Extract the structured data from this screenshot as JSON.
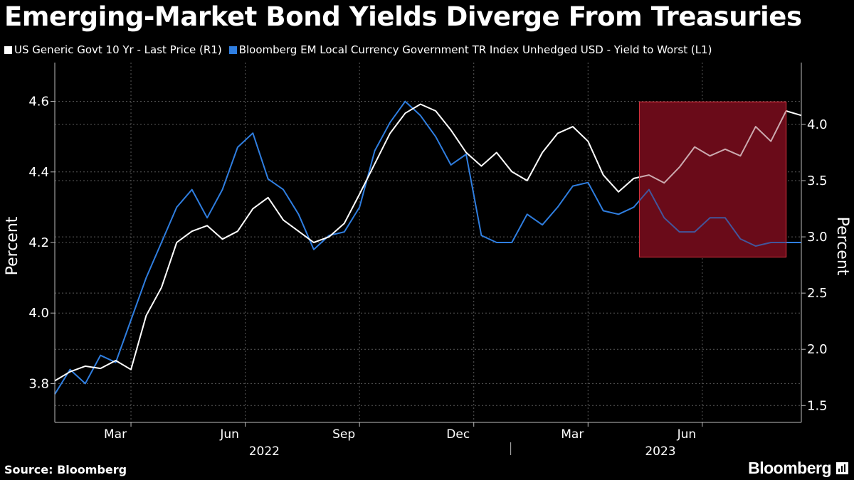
{
  "title": "Emerging-Market Bond Yields Diverge From Treasuries",
  "source": "Source: Bloomberg",
  "brand": "Bloomberg",
  "colors": {
    "background": "#000000",
    "us10y": "#ffffff",
    "em_index": "#2f7ee0",
    "highlight_fill": "#6b0b1a",
    "highlight_border": "#d0303c",
    "grid": "#5a5a5a"
  },
  "chart_data": {
    "type": "line",
    "title": "Emerging-Market Bond Yields Diverge From Treasuries",
    "legend": [
      {
        "name": "US Generic Govt 10 Yr - Last Price (R1)",
        "color": "#ffffff",
        "axis": "right"
      },
      {
        "name": "Bloomberg EM Local Currency Government TR Index Unhedged USD - Yield to Worst (L1)",
        "color": "#2f7ee0",
        "axis": "left"
      }
    ],
    "left_axis": {
      "label": "Percent",
      "range": [
        3.69,
        4.71
      ],
      "ticks": [
        "3.8",
        "4.0",
        "4.2",
        "4.4",
        "4.6"
      ]
    },
    "right_axis": {
      "label": "Percent",
      "range": [
        1.35,
        4.55
      ],
      "ticks": [
        "1.5",
        "2.0",
        "2.5",
        "3.0",
        "3.5",
        "4.0"
      ]
    },
    "x_range": [
      0,
      19.6
    ],
    "x_ticks": [
      {
        "label": "Mar",
        "x": 2.0
      },
      {
        "label": "Jun",
        "x": 5.0
      },
      {
        "label": "Sep",
        "x": 8.0
      },
      {
        "label": "Dec",
        "x": 11.0
      },
      {
        "label": "Mar",
        "x": 14.0
      },
      {
        "label": "Jun",
        "x": 17.0
      }
    ],
    "x_years": [
      {
        "label": "2022",
        "x": 5.5
      },
      {
        "label": "2023",
        "x": 15.9
      }
    ],
    "year_divider_x": 11.97,
    "highlight": {
      "x_start": 15.35,
      "x_end": 19.2,
      "right_y_start": 2.82,
      "right_y_end": 4.2
    },
    "series": [
      {
        "name": "US Generic Govt 10 Yr - Last Price (R1)",
        "axis": "right",
        "color": "#ffffff",
        "x": [
          0,
          0.4,
          0.8,
          1.2,
          1.6,
          2.0,
          2.4,
          2.8,
          3.2,
          3.6,
          4.0,
          4.4,
          4.8,
          5.2,
          5.6,
          6.0,
          6.4,
          6.8,
          7.2,
          7.6,
          8.0,
          8.4,
          8.8,
          9.2,
          9.6,
          10.0,
          10.4,
          10.8,
          11.2,
          11.6,
          12.0,
          12.4,
          12.8,
          13.2,
          13.6,
          14.0,
          14.4,
          14.8,
          15.2,
          15.6,
          16.0,
          16.4,
          16.8,
          17.2,
          17.6,
          18.0,
          18.4,
          18.8,
          19.2,
          19.6
        ],
        "values": [
          1.72,
          1.8,
          1.85,
          1.83,
          1.9,
          1.82,
          2.3,
          2.55,
          2.95,
          3.05,
          3.1,
          2.98,
          3.05,
          3.25,
          3.35,
          3.15,
          3.05,
          2.95,
          3.0,
          3.12,
          3.38,
          3.65,
          3.92,
          4.1,
          4.18,
          4.12,
          3.95,
          3.75,
          3.63,
          3.75,
          3.58,
          3.5,
          3.75,
          3.92,
          3.98,
          3.85,
          3.55,
          3.4,
          3.52,
          3.55,
          3.48,
          3.62,
          3.8,
          3.72,
          3.78,
          3.72,
          3.98,
          3.85,
          4.12,
          4.08
        ]
      },
      {
        "name": "Bloomberg EM Local Currency Government TR Index Unhedged USD - Yield to Worst (L1)",
        "axis": "left",
        "color": "#2f7ee0",
        "x": [
          0,
          0.4,
          0.8,
          1.2,
          1.6,
          2.0,
          2.4,
          2.8,
          3.2,
          3.6,
          4.0,
          4.4,
          4.8,
          5.2,
          5.6,
          6.0,
          6.4,
          6.8,
          7.2,
          7.6,
          8.0,
          8.4,
          8.8,
          9.2,
          9.6,
          10.0,
          10.4,
          10.8,
          11.2,
          11.6,
          12.0,
          12.4,
          12.8,
          13.2,
          13.6,
          14.0,
          14.4,
          14.8,
          15.2,
          15.6,
          16.0,
          16.4,
          16.8,
          17.2,
          17.6,
          18.0,
          18.4,
          18.8,
          19.2,
          19.6
        ],
        "values": [
          3.77,
          3.84,
          3.8,
          3.88,
          3.86,
          3.98,
          4.1,
          4.2,
          4.3,
          4.35,
          4.27,
          4.35,
          4.47,
          4.51,
          4.38,
          4.35,
          4.28,
          4.18,
          4.22,
          4.23,
          4.3,
          4.46,
          4.54,
          4.6,
          4.56,
          4.5,
          4.42,
          4.45,
          4.22,
          4.2,
          4.2,
          4.28,
          4.25,
          4.3,
          4.36,
          4.37,
          4.29,
          4.28,
          4.3,
          4.35,
          4.27,
          4.23,
          4.23,
          4.27,
          4.27,
          4.21,
          4.19,
          4.2,
          4.2,
          4.2
        ]
      }
    ]
  }
}
